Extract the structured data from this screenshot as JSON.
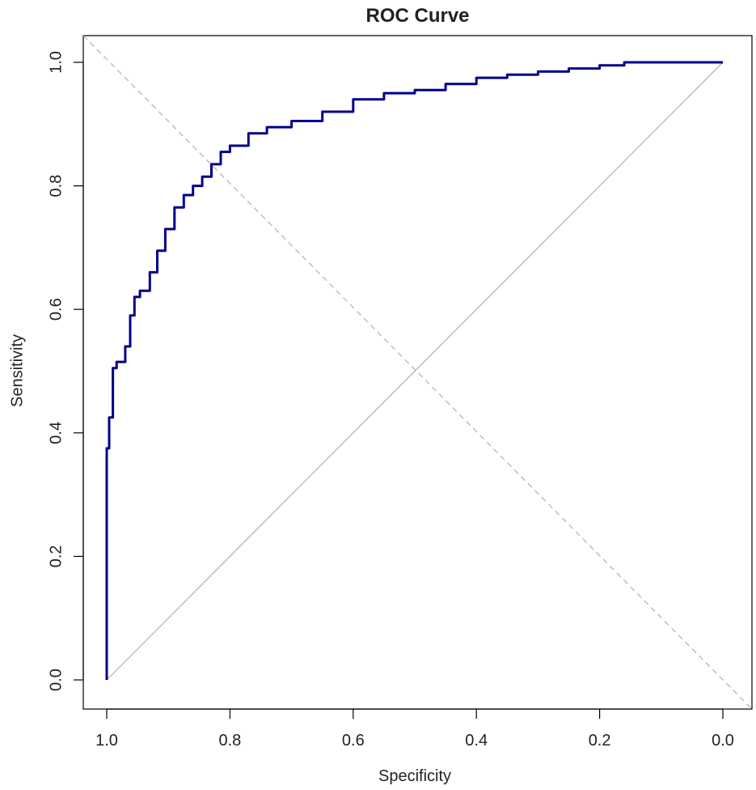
{
  "chart_data": {
    "type": "line",
    "title": "ROC Curve",
    "xlabel": "Specificity",
    "ylabel": "Sensitivity",
    "x_axis_reversed": true,
    "xlim": [
      1.0,
      0.0
    ],
    "ylim": [
      0.0,
      1.0
    ],
    "x_ticks": [
      "1.0",
      "0.8",
      "0.6",
      "0.4",
      "0.2",
      "0.0"
    ],
    "x_tick_values": [
      1.0,
      0.8,
      0.6,
      0.4,
      0.2,
      0.0
    ],
    "y_ticks": [
      "0.0",
      "0.2",
      "0.4",
      "0.6",
      "0.8",
      "1.0"
    ],
    "y_tick_values": [
      0.0,
      0.2,
      0.4,
      0.6,
      0.8,
      1.0
    ],
    "grid": false,
    "colors": {
      "curve": "#00008B",
      "diagonal": "#b0b0b0",
      "box": "#000000"
    },
    "series": [
      {
        "x": [
          1.0,
          1.0,
          0.996,
          0.996,
          0.99,
          0.99,
          0.984,
          0.984,
          0.97,
          0.97,
          0.962,
          0.962,
          0.955,
          0.955,
          0.946,
          0.946,
          0.93,
          0.93,
          0.918,
          0.918,
          0.905,
          0.905,
          0.89,
          0.89,
          0.875,
          0.875,
          0.86,
          0.86,
          0.845,
          0.845,
          0.83,
          0.83,
          0.815,
          0.815,
          0.8,
          0.8,
          0.77,
          0.77,
          0.74,
          0.74,
          0.7,
          0.7,
          0.65,
          0.65,
          0.6,
          0.6,
          0.55,
          0.55,
          0.5,
          0.5,
          0.45,
          0.45,
          0.4,
          0.4,
          0.35,
          0.35,
          0.3,
          0.3,
          0.25,
          0.25,
          0.2,
          0.2,
          0.16,
          0.16,
          0.0
        ],
        "y": [
          0.0,
          0.375,
          0.375,
          0.425,
          0.425,
          0.505,
          0.505,
          0.515,
          0.515,
          0.54,
          0.54,
          0.59,
          0.59,
          0.62,
          0.62,
          0.63,
          0.63,
          0.66,
          0.66,
          0.695,
          0.695,
          0.73,
          0.73,
          0.765,
          0.765,
          0.785,
          0.785,
          0.8,
          0.8,
          0.815,
          0.815,
          0.835,
          0.835,
          0.855,
          0.855,
          0.865,
          0.865,
          0.885,
          0.885,
          0.895,
          0.895,
          0.905,
          0.905,
          0.92,
          0.92,
          0.94,
          0.94,
          0.95,
          0.95,
          0.955,
          0.955,
          0.965,
          0.965,
          0.975,
          0.975,
          0.98,
          0.98,
          0.985,
          0.985,
          0.99,
          0.99,
          0.995,
          0.995,
          1.0,
          1.0
        ]
      }
    ]
  }
}
